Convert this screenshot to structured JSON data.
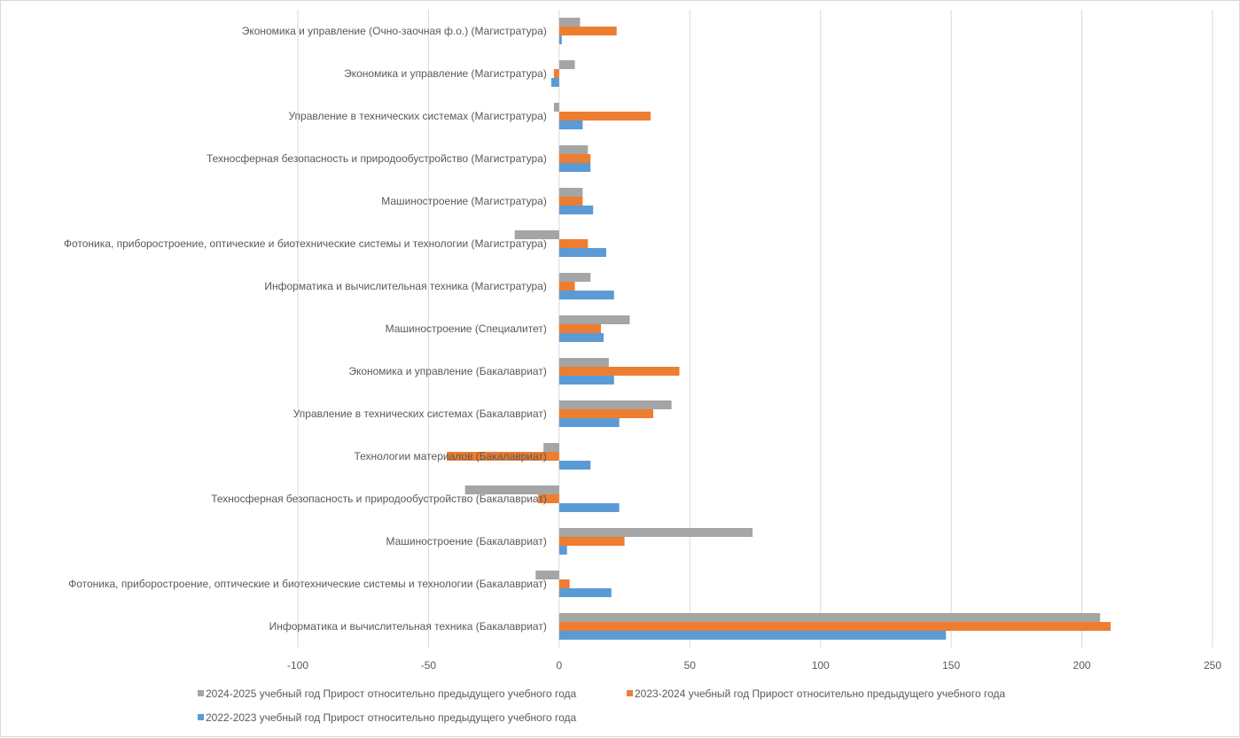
{
  "chart_data": {
    "type": "bar",
    "orientation": "horizontal",
    "categories": [
      "Информатика и вычислительная техника (Бакалавриат)",
      "Фотоника, приборостроение, оптические и биотехнические системы и технологии (Бакалавриат)",
      "Машиностроение (Бакалавриат)",
      "Техносферная безопасность и природообустройство (Бакалавриат)",
      "Технологии материалов (Бакалавриат)",
      "Управление в технических системах (Бакалавриат)",
      "Экономика и управление (Бакалавриат)",
      "Машиностроение (Специалитет)",
      "Информатика и вычислительная техника (Магистратура)",
      "Фотоника, приборостроение, оптические и биотехнические системы и технологии (Магистратура)",
      "Машиностроение (Магистратура)",
      "Техносферная безопасность и природообустройство (Магистратура)",
      "Управление в технических системах (Магистратура)",
      "Экономика и управление (Магистратура)",
      "Экономика и управление (Очно-заочная ф.о.) (Магистратура)"
    ],
    "series": [
      {
        "name": "2022-2023 учебный год Прирост относительно предыдущего учебного года",
        "color": "#5b9bd5",
        "values": [
          148,
          20,
          3,
          23,
          12,
          23,
          21,
          17,
          21,
          18,
          13,
          12,
          9,
          -3,
          1
        ]
      },
      {
        "name": "2023-2024 учебный год Прирост относительно предыдущего учебного года",
        "color": "#ed7d31",
        "values": [
          211,
          4,
          25,
          -8,
          -43,
          36,
          46,
          16,
          6,
          11,
          9,
          12,
          35,
          -2,
          22
        ]
      },
      {
        "name": "2024-2025 учебный год Прирост относительно предыдущего учебного года",
        "color": "#a5a5a5",
        "values": [
          207,
          -9,
          74,
          -36,
          -6,
          43,
          19,
          27,
          12,
          -17,
          9,
          11,
          -2,
          6,
          8
        ]
      }
    ],
    "xlim": [
      -100,
      250
    ],
    "xticks": [
      -100,
      -50,
      0,
      50,
      100,
      150,
      200,
      250
    ],
    "xtick_labels": [
      "-100",
      "-50",
      "0",
      "50",
      "100",
      "150",
      "200",
      "250"
    ],
    "grid": true,
    "legend_position": "bottom",
    "title": "",
    "xlabel": "",
    "ylabel": ""
  }
}
